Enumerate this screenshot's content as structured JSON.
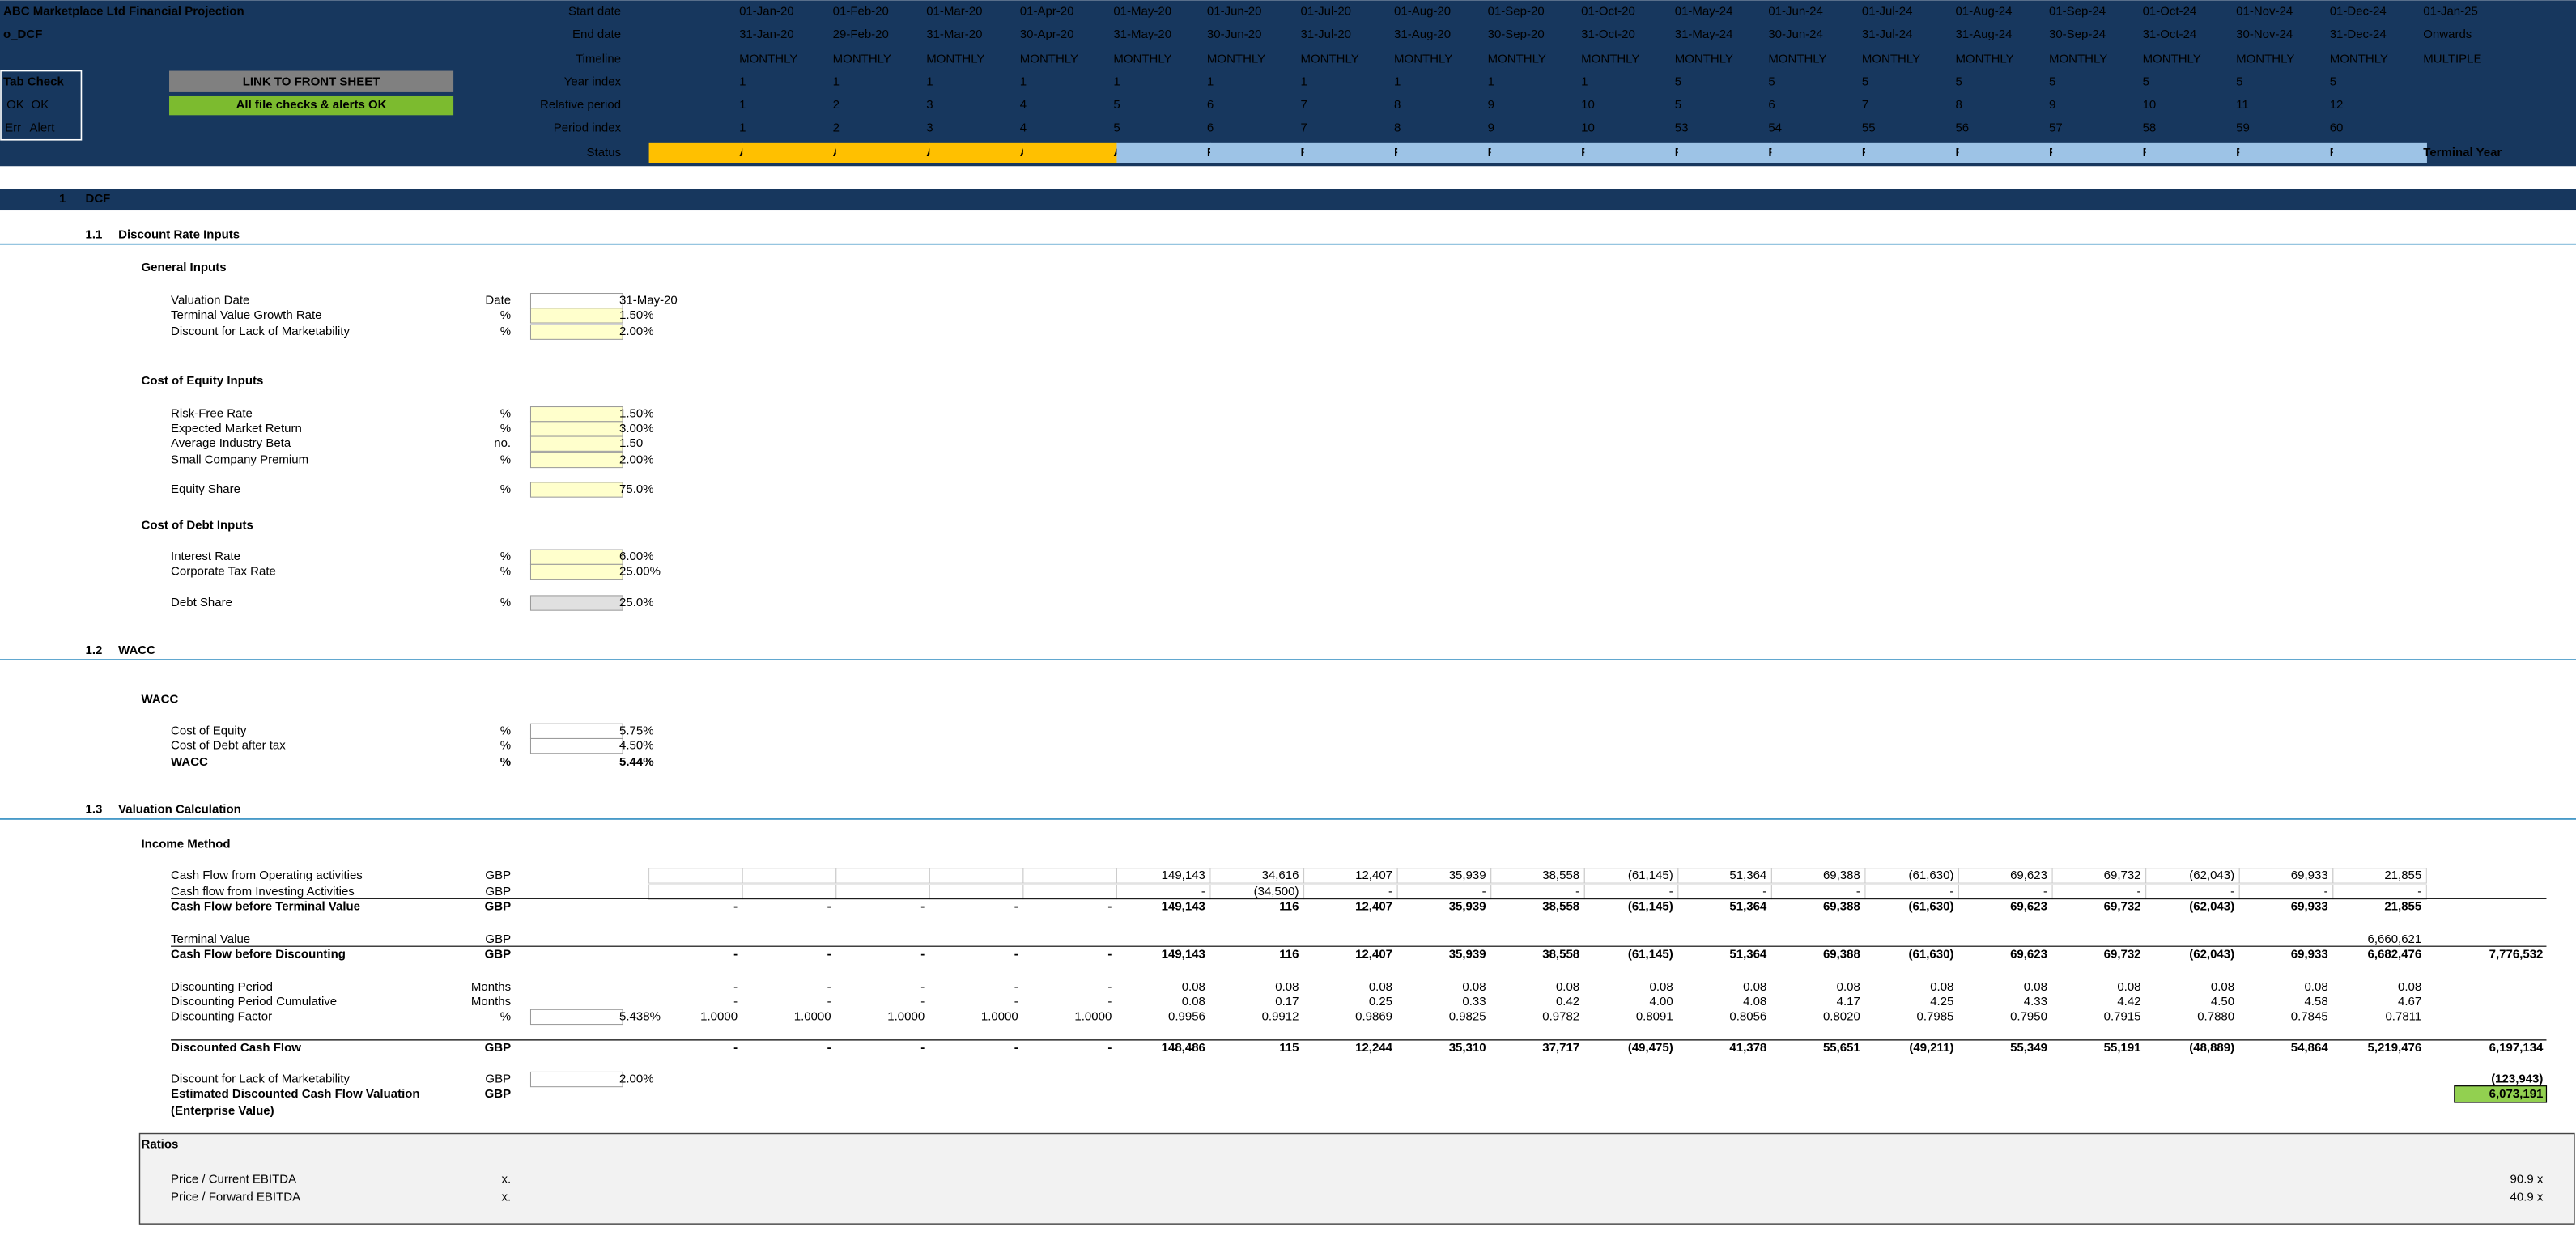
{
  "header": {
    "title": "ABC Marketplace Ltd Financial Projection",
    "sheet": "o_DCF",
    "tab_check": {
      "title": "Tab Check",
      "ok_1": "OK",
      "ok_2": "OK",
      "err": "Err",
      "alert": "Alert"
    },
    "link_button": "LINK TO FRONT SHEET",
    "checks_status": "All file checks & alerts OK",
    "rows": [
      {
        "label": "Start date",
        "values": [
          "01-Jan-20",
          "01-Feb-20",
          "01-Mar-20",
          "01-Apr-20",
          "01-May-20",
          "01-Jun-20",
          "01-Jul-20",
          "01-Aug-20",
          "01-Sep-20",
          "01-Oct-20",
          "01-May-24",
          "01-Jun-24",
          "01-Jul-24",
          "01-Aug-24",
          "01-Sep-24",
          "01-Oct-24",
          "01-Nov-24",
          "01-Dec-24",
          "01-Jan-25"
        ]
      },
      {
        "label": "End date",
        "values": [
          "31-Jan-20",
          "29-Feb-20",
          "31-Mar-20",
          "30-Apr-20",
          "31-May-20",
          "30-Jun-20",
          "31-Jul-20",
          "31-Aug-20",
          "30-Sep-20",
          "31-Oct-20",
          "31-May-24",
          "30-Jun-24",
          "31-Jul-24",
          "31-Aug-24",
          "30-Sep-24",
          "31-Oct-24",
          "30-Nov-24",
          "31-Dec-24",
          "Onwards"
        ]
      },
      {
        "label": "Timeline",
        "values": [
          "MONTHLY",
          "MONTHLY",
          "MONTHLY",
          "MONTHLY",
          "MONTHLY",
          "MONTHLY",
          "MONTHLY",
          "MONTHLY",
          "MONTHLY",
          "MONTHLY",
          "MONTHLY",
          "MONTHLY",
          "MONTHLY",
          "MONTHLY",
          "MONTHLY",
          "MONTHLY",
          "MONTHLY",
          "MONTHLY",
          "MULTIPLE"
        ]
      },
      {
        "label": "Year index",
        "values": [
          "1",
          "1",
          "1",
          "1",
          "1",
          "1",
          "1",
          "1",
          "1",
          "1",
          "5",
          "5",
          "5",
          "5",
          "5",
          "5",
          "5",
          "5",
          null
        ]
      },
      {
        "label": "Relative period",
        "values": [
          "1",
          "2",
          "3",
          "4",
          "5",
          "6",
          "7",
          "8",
          "9",
          "10",
          "5",
          "6",
          "7",
          "8",
          "9",
          "10",
          "11",
          "12",
          null
        ]
      },
      {
        "label": "Period index",
        "values": [
          "1",
          "2",
          "3",
          "4",
          "5",
          "6",
          "7",
          "8",
          "9",
          "10",
          "53",
          "54",
          "55",
          "56",
          "57",
          "58",
          "59",
          "60",
          null
        ]
      },
      {
        "label": "Status",
        "values": [
          "Actual",
          "Actual",
          "Actual",
          "Actual",
          "Actual",
          "Forecast",
          "Forecast",
          "Forecast",
          "Forecast",
          "Forecast",
          "Forecast",
          "Forecast",
          "Forecast",
          "Forecast",
          "Forecast",
          "Forecast",
          "Forecast",
          "Forecast",
          "Terminal Year"
        ]
      }
    ]
  },
  "sections": [
    {
      "number": "1",
      "title": "DCF",
      "subsections": [
        {
          "number": "1.1",
          "title": "Discount Rate Inputs",
          "groups": [
            {
              "title": "General Inputs",
              "rows": [
                {
                  "label": "Valuation Date",
                  "unit": "Date",
                  "input": "31-May-20"
                },
                {
                  "label": "Terminal Value Growth Rate",
                  "unit": "%",
                  "input": "1.50%"
                },
                {
                  "label": "Discount for Lack of Marketability",
                  "unit": "%",
                  "input": "2.00%"
                }
              ]
            },
            {
              "title": "Cost of Equity Inputs",
              "rows": [
                {
                  "label": "Risk-Free Rate",
                  "unit": "%",
                  "input": "1.50%"
                },
                {
                  "label": "Expected Market Return",
                  "unit": "%",
                  "input": "3.00%"
                },
                {
                  "label": "Average Industry Beta",
                  "unit": "no.",
                  "input": "1.50"
                },
                {
                  "label": "Small Company Premium",
                  "unit": "%",
                  "input": "2.00%"
                },
                {
                  "label": "Equity Share",
                  "unit": "%",
                  "input": "75.0%"
                }
              ]
            },
            {
              "title": "Cost of Debt Inputs",
              "rows": [
                {
                  "label": "Interest Rate",
                  "unit": "%",
                  "input": "6.00%"
                },
                {
                  "label": "Corporate Tax Rate",
                  "unit": "%",
                  "input": "25.00%"
                },
                {
                  "label": "Debt Share",
                  "unit": "%",
                  "input": "25.0%"
                }
              ]
            }
          ]
        },
        {
          "number": "1.2",
          "title": "WACC",
          "groups": [
            {
              "title": "WACC",
              "rows": [
                {
                  "label": "Cost of Equity",
                  "unit": "%",
                  "input": "5.75%"
                },
                {
                  "label": "Cost of Debt after tax",
                  "unit": "%",
                  "input": "4.50%"
                },
                {
                  "label": "WACC",
                  "unit": "%",
                  "input": "5.44%"
                }
              ]
            }
          ]
        },
        {
          "number": "1.3",
          "title": "Valuation Calculation",
          "groups": [
            {
              "title": "Income Method",
              "rows": [
                {
                  "label": "Cash Flow from Operating activities",
                  "unit": "GBP",
                  "values": [
                    null,
                    null,
                    null,
                    null,
                    null,
                    "149,143",
                    "34,616",
                    "12,407",
                    "35,939",
                    "38,558",
                    "(61,145)",
                    "51,364",
                    "69,388",
                    "(61,630)",
                    "69,623",
                    "69,732",
                    "(62,043)",
                    "69,933",
                    "21,855"
                  ]
                },
                {
                  "label": "Cash flow from Investing Activities",
                  "unit": "GBP",
                  "values": [
                    null,
                    null,
                    null,
                    null,
                    null,
                    "-",
                    "(34,500)",
                    "-",
                    "-",
                    "-",
                    "-",
                    "-",
                    "-",
                    "-",
                    "-",
                    "-",
                    "-",
                    "-",
                    "-"
                  ]
                },
                {
                  "label": "Cash Flow before Terminal Value",
                  "unit": "GBP",
                  "values": [
                    "-",
                    "-",
                    "-",
                    "-",
                    "-",
                    "149,143",
                    "116",
                    "12,407",
                    "35,939",
                    "38,558",
                    "(61,145)",
                    "51,364",
                    "69,388",
                    "(61,630)",
                    "69,623",
                    "69,732",
                    "(62,043)",
                    "69,933",
                    "21,855"
                  ]
                },
                {
                  "label": "Terminal Value",
                  "unit": "GBP",
                  "values": [
                    null,
                    null,
                    null,
                    null,
                    null,
                    null,
                    null,
                    null,
                    null,
                    null,
                    null,
                    null,
                    null,
                    null,
                    null,
                    null,
                    null,
                    null,
                    "6,660,621"
                  ]
                },
                {
                  "label": "Cash Flow before Discounting",
                  "unit": "GBP",
                  "values": [
                    "-",
                    "-",
                    "-",
                    "-",
                    "-",
                    "149,143",
                    "116",
                    "12,407",
                    "35,939",
                    "38,558",
                    "(61,145)",
                    "51,364",
                    "69,388",
                    "(61,630)",
                    "69,623",
                    "69,732",
                    "(62,043)",
                    "69,933",
                    "6,682,476"
                  ],
                  "total": "7,776,532"
                },
                {
                  "label": "Discounting Period",
                  "unit": "Months",
                  "values": [
                    "-",
                    "-",
                    "-",
                    "-",
                    "-",
                    "0.08",
                    "0.08",
                    "0.08",
                    "0.08",
                    "0.08",
                    "0.08",
                    "0.08",
                    "0.08",
                    "0.08",
                    "0.08",
                    "0.08",
                    "0.08",
                    "0.08",
                    "0.08"
                  ]
                },
                {
                  "label": "Discounting Period Cumulative",
                  "unit": "Months",
                  "values": [
                    "-",
                    "-",
                    "-",
                    "-",
                    "-",
                    "0.08",
                    "0.17",
                    "0.25",
                    "0.33",
                    "0.42",
                    "4.00",
                    "4.08",
                    "4.17",
                    "4.25",
                    "4.33",
                    "4.42",
                    "4.50",
                    "4.58",
                    "4.67"
                  ]
                },
                {
                  "label": "Discounting Factor",
                  "unit": "%",
                  "input": "5.438%",
                  "values": [
                    "1.0000",
                    "1.0000",
                    "1.0000",
                    "1.0000",
                    "1.0000",
                    "0.9956",
                    "0.9912",
                    "0.9869",
                    "0.9825",
                    "0.9782",
                    "0.8091",
                    "0.8056",
                    "0.8020",
                    "0.7985",
                    "0.7950",
                    "0.7915",
                    "0.7880",
                    "0.7845",
                    "0.7811"
                  ]
                },
                {
                  "label": "Discounted Cash Flow",
                  "unit": "GBP",
                  "values": [
                    "-",
                    "-",
                    "-",
                    "-",
                    "-",
                    "148,486",
                    "115",
                    "12,244",
                    "35,310",
                    "37,717",
                    "(49,475)",
                    "41,378",
                    "55,651",
                    "(49,211)",
                    "55,349",
                    "55,191",
                    "(48,889)",
                    "54,864",
                    "5,219,476"
                  ],
                  "total": "6,197,134"
                },
                {
                  "label": "Discount for Lack of Marketability",
                  "unit": "GBP",
                  "input": "2.00%",
                  "total": "(123,943)"
                },
                {
                  "label": [
                    "Estimated Discounted Cash Flow Valuation",
                    "(Enterprise Value)"
                  ],
                  "unit": "GBP",
                  "total": "6,073,191"
                }
              ]
            },
            {
              "title": "Ratios",
              "rows": [
                {
                  "label": "Price / Current EBITDA",
                  "unit": "x.",
                  "total": "90.9 x"
                },
                {
                  "label": "Price / Forward EBITDA",
                  "unit": "x.",
                  "total": "40.9 x"
                }
              ]
            }
          ]
        }
      ]
    }
  ]
}
